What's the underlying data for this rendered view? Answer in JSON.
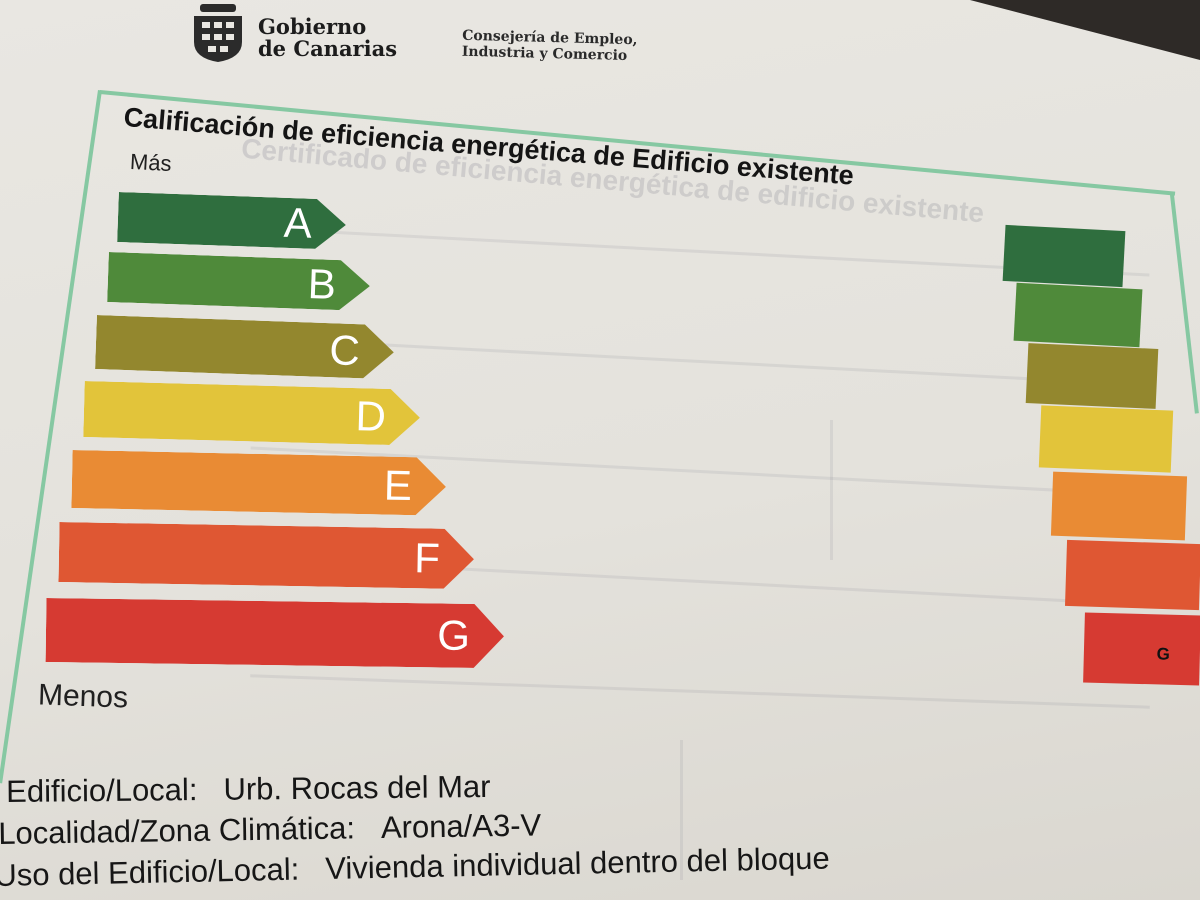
{
  "header": {
    "org_line1": "Gobierno",
    "org_line2": "de Canarias",
    "dept_line1": "Consejería de Empleo,",
    "dept_line2": "Industria y Comercio"
  },
  "title": "Calificación de eficiencia energética de Edificio existente",
  "scale": {
    "top_label": "Más",
    "bottom_label": "Menos",
    "classes": [
      {
        "letter": "A",
        "color": "#2f6e3e"
      },
      {
        "letter": "B",
        "color": "#4f8a3a"
      },
      {
        "letter": "C",
        "color": "#93872e"
      },
      {
        "letter": "D",
        "color": "#e2c43a"
      },
      {
        "letter": "E",
        "color": "#e98b34"
      },
      {
        "letter": "F",
        "color": "#df5733"
      },
      {
        "letter": "G",
        "color": "#d63a32"
      }
    ]
  },
  "result": {
    "rating": "G"
  },
  "building": {
    "label1": "Edificio/Local:",
    "value1": "Urb. Rocas del Mar",
    "label2": "Localidad/Zona Climática:",
    "value2": "Arona/A3-V",
    "label3": "Uso del Edificio/Local:",
    "value3": "Vivienda individual dentro del bloque"
  }
}
